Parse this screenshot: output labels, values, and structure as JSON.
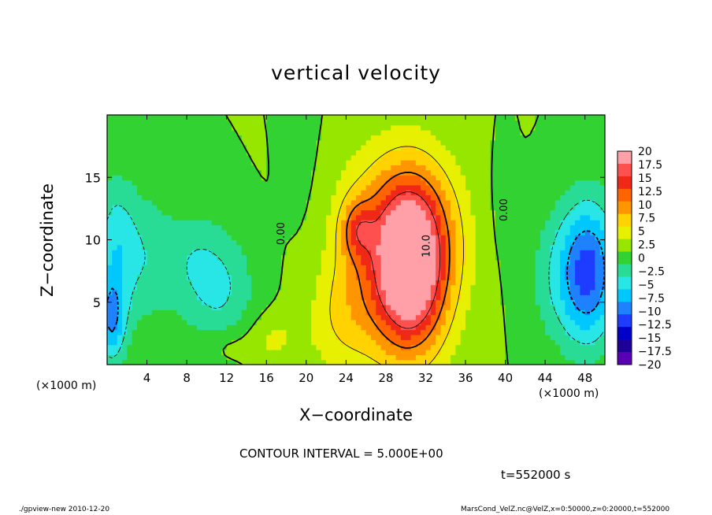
{
  "title": "vertical velocity",
  "footer": {
    "left": "./gpview-new  2010-12-20",
    "right": "MarsCond_VelZ.nc@VelZ,x=0:50000,z=0:20000,t=552000"
  },
  "annotations": {
    "contour_interval": "CONTOUR INTERVAL = 5.000E+00",
    "time": "t=552000 s",
    "x_unit": "(×1000 m)"
  },
  "chart_data": {
    "type": "heatmap",
    "title": "vertical velocity",
    "xlabel": "X−coordinate",
    "ylabel": "Z−coordinate",
    "x_unit": "(×1000 m)",
    "xlim": [
      0,
      50
    ],
    "ylim": [
      0,
      20
    ],
    "x_ticks": [
      4,
      8,
      12,
      16,
      20,
      24,
      28,
      32,
      36,
      40,
      44,
      48
    ],
    "y_ticks": [
      5,
      10,
      15
    ],
    "contour_interval": 5.0,
    "contour_labels": [
      {
        "text": "0.00",
        "x": 17.8,
        "z": 10.5
      },
      {
        "text": "10.0",
        "x": 32.4,
        "z": 9.5
      },
      {
        "text": "0.00",
        "x": 40.2,
        "z": 12.4
      }
    ],
    "colorbar": {
      "levels": [
        20,
        17.5,
        15,
        12.5,
        10,
        7.5,
        5,
        2.5,
        0,
        -2.5,
        -5,
        -7.5,
        -10,
        -12.5,
        -15,
        -17.5,
        -20
      ],
      "labels": [
        "20",
        "17.5",
        "15",
        "12.5",
        "10",
        "7.5",
        "5",
        "2.5",
        "0",
        "−2.5",
        "−5",
        "−7.5",
        "−10",
        "−12.5",
        "−15",
        "−17.5",
        "−20"
      ],
      "colors": [
        "#ffa0a8",
        "#ff5050",
        "#f02818",
        "#ff6400",
        "#ff9600",
        "#ffd200",
        "#e6f000",
        "#96e600",
        "#32d232",
        "#28dc96",
        "#28e6e6",
        "#00c8ff",
        "#1e82ff",
        "#1e3cff",
        "#0000c8",
        "#1e0096",
        "#5a00b4"
      ]
    },
    "features": [
      {
        "name": "updraft",
        "x": 30.5,
        "z": 8,
        "sx": 2.4,
        "sz": 4.5,
        "amp": 19
      },
      {
        "name": "updraft",
        "x": 28.5,
        "z": 7,
        "sx": 4.5,
        "sz": 5.5,
        "amp": 6
      },
      {
        "name": "updraft",
        "x": 25.2,
        "z": 10.8,
        "sx": 1.1,
        "sz": 1.6,
        "amp": 7
      },
      {
        "name": "updraft",
        "x": 29.5,
        "z": 11.5,
        "sx": 5,
        "sz": 4.5,
        "amp": 5
      },
      {
        "name": "downdraft",
        "x": 48.5,
        "z": 7.5,
        "sx": 2,
        "sz": 4,
        "amp": -12
      },
      {
        "name": "downdraft",
        "x": 45.5,
        "z": 7,
        "sx": 2.5,
        "sz": 4,
        "amp": -4
      },
      {
        "name": "downdraft",
        "x": 0.4,
        "z": 3.5,
        "sx": 1,
        "sz": 2.5,
        "amp": -9
      },
      {
        "name": "downdraft",
        "x": 0.8,
        "z": 9.5,
        "sx": 1.5,
        "sz": 4,
        "amp": -6
      },
      {
        "name": "downdraft",
        "x": 4,
        "z": 8.5,
        "sx": 2,
        "sz": 4,
        "amp": -4
      },
      {
        "name": "downdraft",
        "x": 11.5,
        "z": 6,
        "sx": 2.5,
        "sz": 3.5,
        "amp": -5
      },
      {
        "name": "downdraft",
        "x": 8.5,
        "z": 8.5,
        "sx": 2,
        "sz": 3,
        "amp": -3
      },
      {
        "name": "updraft",
        "x": 23.5,
        "z": 3.5,
        "sx": 2.5,
        "sz": 3,
        "amp": 3
      },
      {
        "name": "downdraft",
        "x": 20.5,
        "z": 12,
        "sx": 2,
        "sz": 5,
        "amp": -1.5
      },
      {
        "name": "downdraft",
        "x": 39,
        "z": 12,
        "sx": 1.5,
        "sz": 4,
        "amp": -1.2
      },
      {
        "name": "updraft",
        "x": 16.5,
        "z": 2,
        "sx": 2,
        "sz": 1.5,
        "amp": 3
      },
      {
        "name": "updraft",
        "x": 12,
        "z": 1.5,
        "sx": 1.5,
        "sz": 1,
        "amp": 2
      }
    ]
  }
}
